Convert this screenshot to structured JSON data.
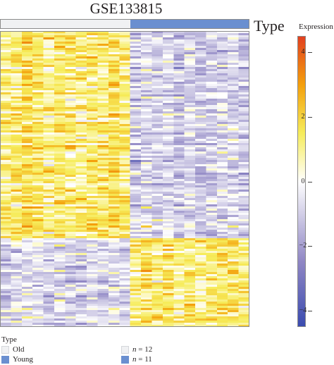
{
  "title": "GSE133815",
  "annotation_label": "Type",
  "groups": [
    {
      "name": "Old",
      "color": "#f0f1f3",
      "n_label": "n = 12",
      "count": 12
    },
    {
      "name": "Young",
      "color": "#6a8fd0",
      "n_label": "n = 11",
      "count": 11
    }
  ],
  "legend": {
    "title": "Type"
  },
  "color_scale": {
    "title": "Expression",
    "min": -4.5,
    "max": 4.5,
    "ticks": [
      "4",
      "2",
      "0",
      "−2",
      "−4"
    ],
    "tick_values": [
      4,
      2,
      0,
      -2,
      -4
    ],
    "stops": [
      {
        "value": -4.5,
        "color": "#3b4cb0"
      },
      {
        "value": -2.5,
        "color": "#8f86c4"
      },
      {
        "value": 0,
        "color": "#ffffff"
      },
      {
        "value": 1.5,
        "color": "#f6ec5a"
      },
      {
        "value": 3,
        "color": "#f4a00c"
      },
      {
        "value": 4.5,
        "color": "#e2401f"
      }
    ]
  },
  "chart_data": {
    "type": "heatmap",
    "title": "GSE133815",
    "samples": 23,
    "genes": 140,
    "column_groups": [
      "Old",
      "Old",
      "Old",
      "Old",
      "Old",
      "Old",
      "Old",
      "Old",
      "Old",
      "Old",
      "Old",
      "Old",
      "Young",
      "Young",
      "Young",
      "Young",
      "Young",
      "Young",
      "Young",
      "Young",
      "Young",
      "Young",
      "Young"
    ],
    "row_blocks": [
      {
        "genes": 98,
        "Old_mean": 1.3,
        "Young_mean": -0.9
      },
      {
        "genes": 42,
        "Old_mean": -0.8,
        "Young_mean": 1.3
      }
    ],
    "value_range": [
      -4.5,
      4.5
    ],
    "colorbar_label": "Expression"
  }
}
